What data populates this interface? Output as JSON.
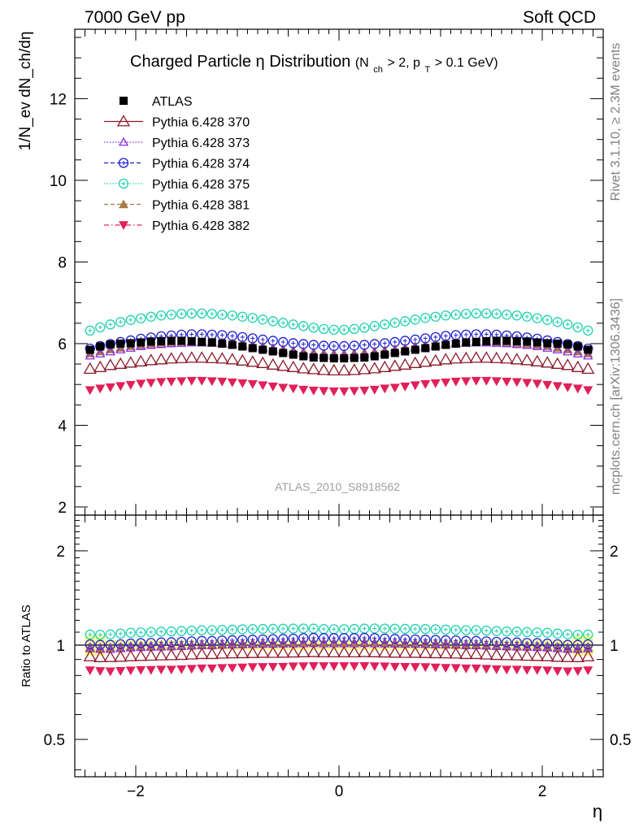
{
  "header": {
    "left": "7000 GeV pp",
    "right": "Soft QCD"
  },
  "title": {
    "main": "Charged Particle η Distribution",
    "sub_open": "(N",
    "sub_ch": "ch",
    "sub_mid": " > 2, p",
    "sub_T": "T",
    "sub_close": " > 0.1 GeV)"
  },
  "side_labels": {
    "rivet": "Rivet 3.1.10, ≥ 2.3M events",
    "mcplots": "mcplots.cern.ch [arXiv:1306.3436]"
  },
  "watermark": "ATLAS_2010_S8918562",
  "axes": {
    "ylabel_main": "1/N_ev dN_ch/dη",
    "ylabel_ratio": "Ratio to ATLAS",
    "xlabel": "η",
    "main_yticks": [
      {
        "v": 2,
        "label": "2"
      },
      {
        "v": 4,
        "label": "4"
      },
      {
        "v": 6,
        "label": "6"
      },
      {
        "v": 8,
        "label": "8"
      },
      {
        "v": 10,
        "label": "10"
      },
      {
        "v": 12,
        "label": "12"
      }
    ],
    "ratio_yticks": [
      {
        "v": 0.5,
        "label": "0.5"
      },
      {
        "v": 1,
        "label": "1"
      },
      {
        "v": 2,
        "label": "2"
      }
    ],
    "xticks": [
      {
        "v": -2,
        "label": "−2"
      },
      {
        "v": 0,
        "label": "0"
      },
      {
        "v": 2,
        "label": "2"
      }
    ]
  },
  "legend": [
    {
      "name": "ATLAS",
      "color": "#000000",
      "marker": "square-filled",
      "line": "none"
    },
    {
      "name": "Pythia 6.428 370",
      "color": "#8b1a2b",
      "marker": "triangle-open",
      "line": "solid"
    },
    {
      "name": "Pythia 6.428 373",
      "color": "#8a2be2",
      "marker": "triangle-open-small",
      "line": "dotted"
    },
    {
      "name": "Pythia 6.428 374",
      "color": "#1f1fd0",
      "marker": "circle-open",
      "line": "dashed"
    },
    {
      "name": "Pythia 6.428 375",
      "color": "#20d0b0",
      "marker": "circle-open",
      "line": "dotted"
    },
    {
      "name": "Pythia 6.428 381",
      "color": "#a87a4a",
      "marker": "triangle-filled",
      "line": "dashed"
    },
    {
      "name": "Pythia 6.428 382",
      "color": "#e0205a",
      "marker": "triangle-down-filled",
      "line": "dashdot"
    }
  ],
  "chart_data": {
    "type": "scatter",
    "x_range": [
      -2.6,
      2.6
    ],
    "main_ylim": [
      1.8,
      13.7
    ],
    "ratio_ylim": [
      0.38,
      2.6
    ],
    "ratio_scale": "log",
    "bins": 50,
    "bin_range": [
      -2.5,
      2.5
    ],
    "series": [
      {
        "name": "ATLAS",
        "values": [
          5.85,
          5.93,
          5.98,
          6.0,
          6.01,
          6.03,
          6.05,
          6.06,
          6.07,
          6.07,
          6.06,
          6.04,
          6.03,
          6.0,
          5.97,
          5.93,
          5.89,
          5.85,
          5.81,
          5.77,
          5.73,
          5.69,
          5.66,
          5.65,
          5.64,
          5.64,
          5.65,
          5.66,
          5.69,
          5.73,
          5.77,
          5.81,
          5.85,
          5.89,
          5.93,
          5.97,
          6.0,
          6.03,
          6.04,
          6.06,
          6.07,
          6.07,
          6.06,
          6.05,
          6.03,
          6.01,
          6.0,
          5.98,
          5.93,
          5.85
        ]
      },
      {
        "name": "Pythia 6.428 370",
        "values": [
          5.38,
          5.42,
          5.47,
          5.5,
          5.53,
          5.56,
          5.59,
          5.61,
          5.63,
          5.64,
          5.65,
          5.65,
          5.64,
          5.63,
          5.61,
          5.58,
          5.55,
          5.52,
          5.48,
          5.45,
          5.42,
          5.39,
          5.37,
          5.35,
          5.34,
          5.34,
          5.35,
          5.37,
          5.39,
          5.42,
          5.45,
          5.48,
          5.52,
          5.55,
          5.58,
          5.61,
          5.63,
          5.64,
          5.65,
          5.65,
          5.64,
          5.63,
          5.61,
          5.59,
          5.56,
          5.53,
          5.5,
          5.47,
          5.42,
          5.38
        ]
      },
      {
        "name": "Pythia 6.428 373",
        "values": [
          5.7,
          5.75,
          5.8,
          5.85,
          5.89,
          5.93,
          5.96,
          5.98,
          6.0,
          6.01,
          6.02,
          6.02,
          6.01,
          6.0,
          5.98,
          5.95,
          5.92,
          5.89,
          5.85,
          5.82,
          5.78,
          5.75,
          5.73,
          5.71,
          5.7,
          5.7,
          5.71,
          5.73,
          5.75,
          5.78,
          5.82,
          5.85,
          5.89,
          5.92,
          5.95,
          5.98,
          6.0,
          6.01,
          6.02,
          6.02,
          6.01,
          6.0,
          5.98,
          5.96,
          5.93,
          5.89,
          5.85,
          5.8,
          5.75,
          5.7
        ]
      },
      {
        "name": "Pythia 6.428 374",
        "values": [
          5.88,
          5.94,
          5.99,
          6.04,
          6.08,
          6.12,
          6.15,
          6.18,
          6.2,
          6.22,
          6.23,
          6.23,
          6.22,
          6.21,
          6.19,
          6.16,
          6.13,
          6.1,
          6.07,
          6.04,
          6.01,
          5.99,
          5.97,
          5.95,
          5.94,
          5.94,
          5.95,
          5.97,
          5.99,
          6.01,
          6.04,
          6.07,
          6.1,
          6.13,
          6.16,
          6.19,
          6.21,
          6.22,
          6.23,
          6.23,
          6.22,
          6.2,
          6.18,
          6.15,
          6.12,
          6.08,
          6.04,
          5.99,
          5.94,
          5.88
        ]
      },
      {
        "name": "Pythia 6.428 375",
        "values": [
          6.32,
          6.4,
          6.47,
          6.53,
          6.58,
          6.62,
          6.66,
          6.69,
          6.71,
          6.73,
          6.74,
          6.74,
          6.73,
          6.71,
          6.69,
          6.66,
          6.63,
          6.59,
          6.55,
          6.51,
          6.47,
          6.43,
          6.39,
          6.36,
          6.34,
          6.34,
          6.36,
          6.39,
          6.43,
          6.47,
          6.51,
          6.55,
          6.59,
          6.63,
          6.66,
          6.69,
          6.71,
          6.73,
          6.74,
          6.74,
          6.73,
          6.71,
          6.69,
          6.66,
          6.62,
          6.58,
          6.53,
          6.47,
          6.4,
          6.32
        ]
      },
      {
        "name": "Pythia 6.428 381",
        "values": [
          5.76,
          5.81,
          5.86,
          5.9,
          5.94,
          5.97,
          6.0,
          6.02,
          6.04,
          6.05,
          6.06,
          6.06,
          6.05,
          6.04,
          6.02,
          6.0,
          5.97,
          5.94,
          5.9,
          5.87,
          5.84,
          5.81,
          5.79,
          5.77,
          5.76,
          5.76,
          5.77,
          5.79,
          5.81,
          5.84,
          5.87,
          5.9,
          5.94,
          5.97,
          6.0,
          6.02,
          6.04,
          6.05,
          6.06,
          6.06,
          6.05,
          6.04,
          6.02,
          6.0,
          5.97,
          5.94,
          5.9,
          5.86,
          5.81,
          5.76
        ]
      },
      {
        "name": "Pythia 6.428 382",
        "values": [
          4.86,
          4.9,
          4.93,
          4.96,
          4.99,
          5.02,
          5.04,
          5.06,
          5.07,
          5.08,
          5.09,
          5.09,
          5.08,
          5.07,
          5.05,
          5.03,
          5.01,
          4.98,
          4.95,
          4.92,
          4.9,
          4.87,
          4.85,
          4.84,
          4.83,
          4.83,
          4.84,
          4.85,
          4.87,
          4.9,
          4.92,
          4.95,
          4.98,
          5.01,
          5.03,
          5.05,
          5.07,
          5.08,
          5.09,
          5.09,
          5.08,
          5.07,
          5.06,
          5.04,
          5.02,
          4.99,
          4.96,
          4.93,
          4.9,
          4.86
        ]
      }
    ]
  }
}
